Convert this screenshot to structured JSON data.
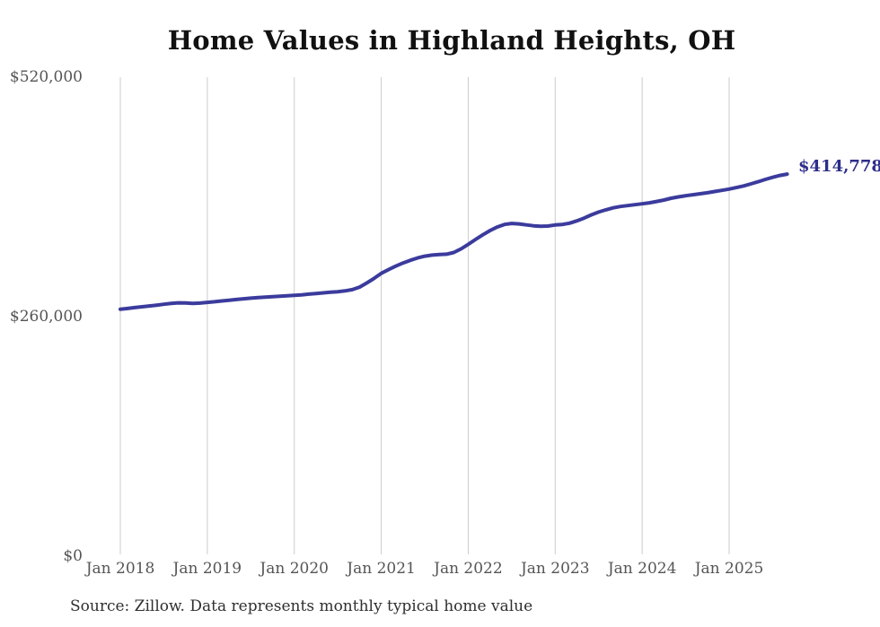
{
  "chart": {
    "title": "Home Values in Highland Heights, OH",
    "source_note": "Source: Zillow. Data represents monthly typical home value",
    "end_label": "$414,778"
  },
  "chart_data": {
    "type": "line",
    "title": "Home Values in Highland Heights, OH",
    "xlabel": "",
    "ylabel": "",
    "frequency": "monthly",
    "x_start": "Jan 2018",
    "x_end": "Sep 2025",
    "x_tick_labels": [
      "Jan 2018",
      "Jan 2019",
      "Jan 2020",
      "Jan 2021",
      "Jan 2022",
      "Jan 2023",
      "Jan 2024",
      "Jan 2025"
    ],
    "months_per_tick": 12,
    "y_ticks": [
      0,
      260000,
      520000
    ],
    "y_tick_labels": [
      "$0",
      "$260,000",
      "$520,000"
    ],
    "ylim": [
      0,
      520000
    ],
    "grid": "vertical-yearly-gridlines",
    "legend": "none",
    "line_color": "#3b3b9d",
    "grid_color": "#cccccc",
    "end_annotation": {
      "text": "$414,778",
      "value": 414778
    },
    "series": [
      {
        "name": "Typical home value",
        "values": [
          268000,
          268900,
          269800,
          270700,
          271600,
          272500,
          273400,
          274300,
          275000,
          274800,
          274300,
          274700,
          275500,
          276200,
          277000,
          277800,
          278600,
          279400,
          280100,
          280700,
          281200,
          281700,
          282100,
          282600,
          283100,
          283700,
          284400,
          285100,
          285800,
          286500,
          287100,
          287900,
          289300,
          292000,
          296500,
          301500,
          307000,
          311000,
          314800,
          318200,
          321200,
          323700,
          325600,
          326800,
          327400,
          327800,
          329600,
          333500,
          338500,
          343700,
          348800,
          353400,
          357300,
          360100,
          361200,
          360700,
          359600,
          358600,
          358100,
          358400,
          359500,
          360100,
          361500,
          364000,
          367000,
          370500,
          373500,
          376000,
          378100,
          379600,
          380600,
          381500,
          382500,
          383600,
          385000,
          386600,
          388500,
          390000,
          391300,
          392300,
          393400,
          394500,
          395800,
          397100,
          398500,
          400100,
          401900,
          404100,
          406500,
          409000,
          411200,
          413300,
          414778
        ]
      }
    ]
  }
}
